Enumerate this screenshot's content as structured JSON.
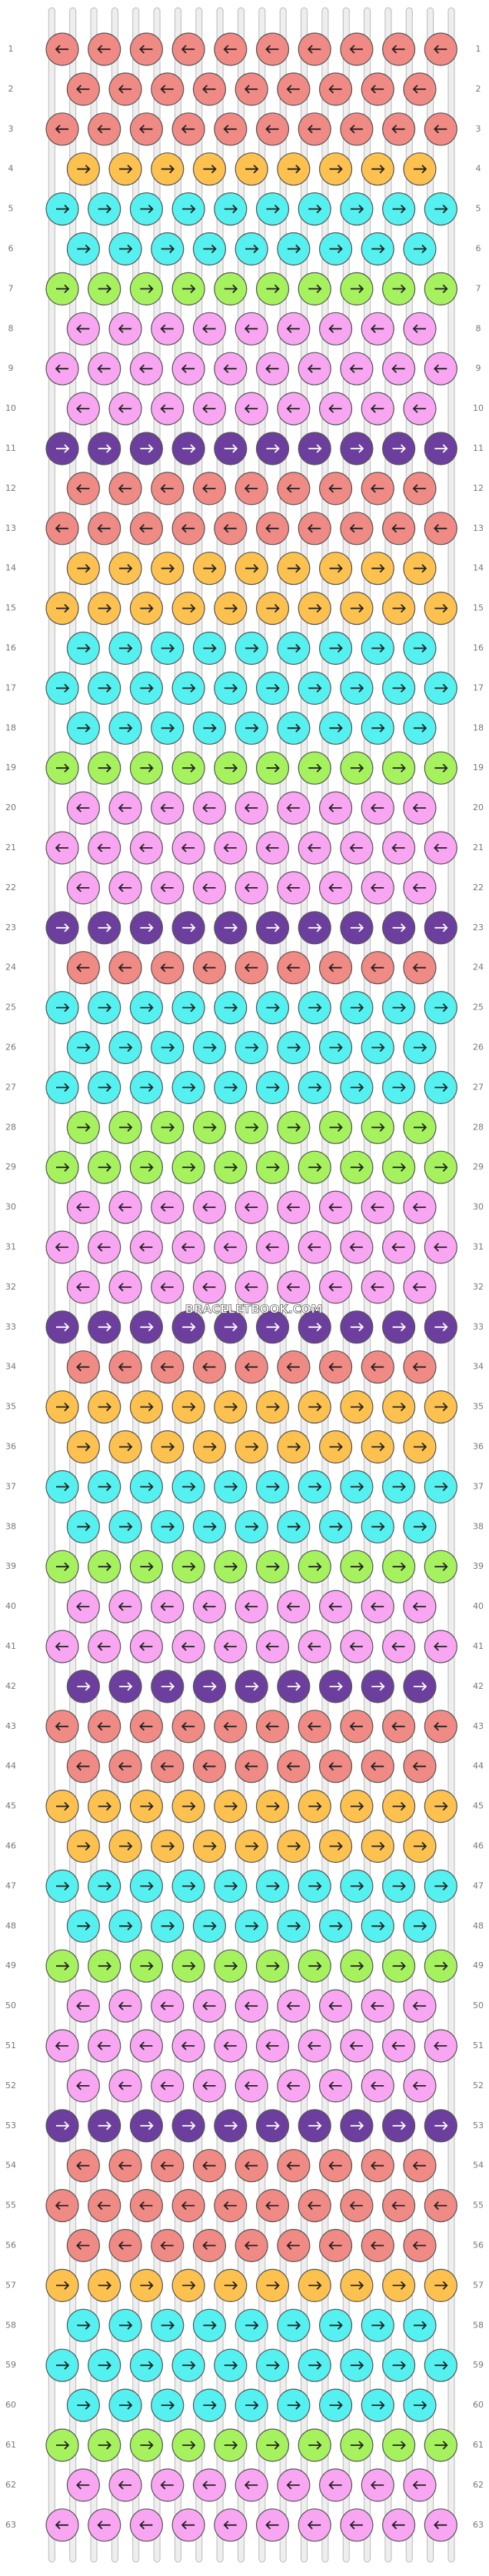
{
  "pattern": {
    "watermark": "BRACELETBOOK.COM",
    "rows": [
      1,
      2,
      3,
      4,
      5,
      6,
      7,
      8,
      9,
      10,
      11,
      12,
      13,
      14,
      15,
      16,
      17,
      18,
      19,
      20,
      21,
      22,
      23,
      24,
      25,
      26,
      27,
      28,
      29,
      30,
      31,
      32,
      33,
      34,
      35,
      36,
      37,
      38,
      39,
      40,
      41,
      42,
      43,
      44,
      45,
      46,
      47,
      48,
      49,
      50,
      51,
      52,
      53,
      54,
      55,
      56,
      57,
      58,
      59,
      60,
      61,
      62,
      63
    ],
    "row_colors": [
      "s",
      "s",
      "s",
      "o",
      "c",
      "c",
      "g",
      "p",
      "p",
      "p",
      "v",
      "s",
      "s",
      "o",
      "o",
      "c",
      "c",
      "c",
      "g",
      "p",
      "p",
      "p",
      "v",
      "s",
      "c",
      "c",
      "c",
      "g",
      "g",
      "p",
      "p",
      "p",
      "v",
      "s",
      "o",
      "o",
      "c",
      "c",
      "g",
      "p",
      "p",
      "v",
      "s",
      "s",
      "o",
      "o",
      "c",
      "c",
      "g",
      "p",
      "p",
      "p",
      "v",
      "s",
      "s",
      "s",
      "o",
      "c",
      "c",
      "c",
      "g",
      "p",
      "p"
    ],
    "palette": {
      "s": {
        "color": "#f08a84",
        "arrow": "left"
      },
      "o": {
        "color": "#fdc150",
        "arrow": "right"
      },
      "c": {
        "color": "#55f0f0",
        "arrow": "right"
      },
      "g": {
        "color": "#a6f25e",
        "arrow": "right"
      },
      "p": {
        "color": "#f9a6f2",
        "arrow": "left"
      },
      "v": {
        "color": "#6c3f9e",
        "arrow": "right"
      }
    }
  }
}
